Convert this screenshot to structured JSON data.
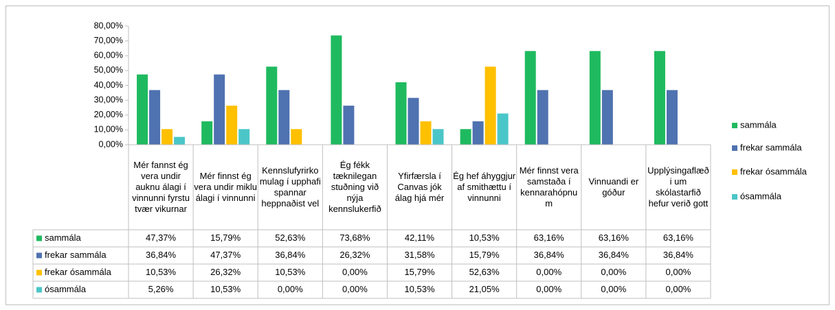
{
  "chart_data": {
    "type": "bar",
    "categories": [
      "Mér fannst ég vera undir auknu álagi í vinnunni fyrstu tvær vikurnar",
      "Mér finnst ég vera undir miklu álagi í vinnunni",
      "Kennslufyrirkomulag í upphafi spannar heppnaðist vel",
      "Ég fékk tæknilegan stuðning við nýja kennslukerfið",
      "Yfirfærsla í Canvas jók álag hjá mér",
      "Ég hef áhyggjur af smithættu í vinnunni",
      "Mér finnst vera samstaða í kennarahópnum",
      "Vinnuandi er góður",
      "Upplýsingaflæði um skólastarfið hefur verið gott"
    ],
    "series": [
      {
        "name": "sammála",
        "color": "#1fba5f",
        "values": [
          47.37,
          15.79,
          52.63,
          73.68,
          42.11,
          10.53,
          63.16,
          63.16,
          63.16
        ],
        "value_labels": [
          "47,37%",
          "15,79%",
          "52,63%",
          "73,68%",
          "42,11%",
          "10,53%",
          "63,16%",
          "63,16%",
          "63,16%"
        ]
      },
      {
        "name": "frekar sammála",
        "color": "#4f72b0",
        "values": [
          36.84,
          47.37,
          36.84,
          26.32,
          31.58,
          15.79,
          36.84,
          36.84,
          36.84
        ],
        "value_labels": [
          "36,84%",
          "47,37%",
          "36,84%",
          "26,32%",
          "31,58%",
          "15,79%",
          "36,84%",
          "36,84%",
          "36,84%"
        ]
      },
      {
        "name": "frekar ósammála",
        "color": "#ffc000",
        "values": [
          10.53,
          26.32,
          10.53,
          0,
          15.79,
          52.63,
          0,
          0,
          0
        ],
        "value_labels": [
          "10,53%",
          "26,32%",
          "10,53%",
          "0,00%",
          "15,79%",
          "52,63%",
          "0,00%",
          "0,00%",
          "0,00%"
        ]
      },
      {
        "name": "ósammála",
        "color": "#4bc6c8",
        "values": [
          5.26,
          10.53,
          0,
          0,
          10.53,
          21.05,
          0,
          0,
          0
        ],
        "value_labels": [
          "5,26%",
          "10,53%",
          "0,00%",
          "0,00%",
          "10,53%",
          "21,05%",
          "0,00%",
          "0,00%",
          "0,00%"
        ]
      }
    ],
    "ylim": [
      0,
      80
    ],
    "yticks": [
      {
        "value": 0,
        "label": "0,00%"
      },
      {
        "value": 10,
        "label": "10,00%"
      },
      {
        "value": 20,
        "label": "20,00%"
      },
      {
        "value": 30,
        "label": "30,00%"
      },
      {
        "value": 40,
        "label": "40,00%"
      },
      {
        "value": 50,
        "label": "50,00%"
      },
      {
        "value": 60,
        "label": "60,00%"
      },
      {
        "value": 70,
        "label": "70,00%"
      },
      {
        "value": 80,
        "label": "80,00%"
      }
    ],
    "legend": "right"
  }
}
